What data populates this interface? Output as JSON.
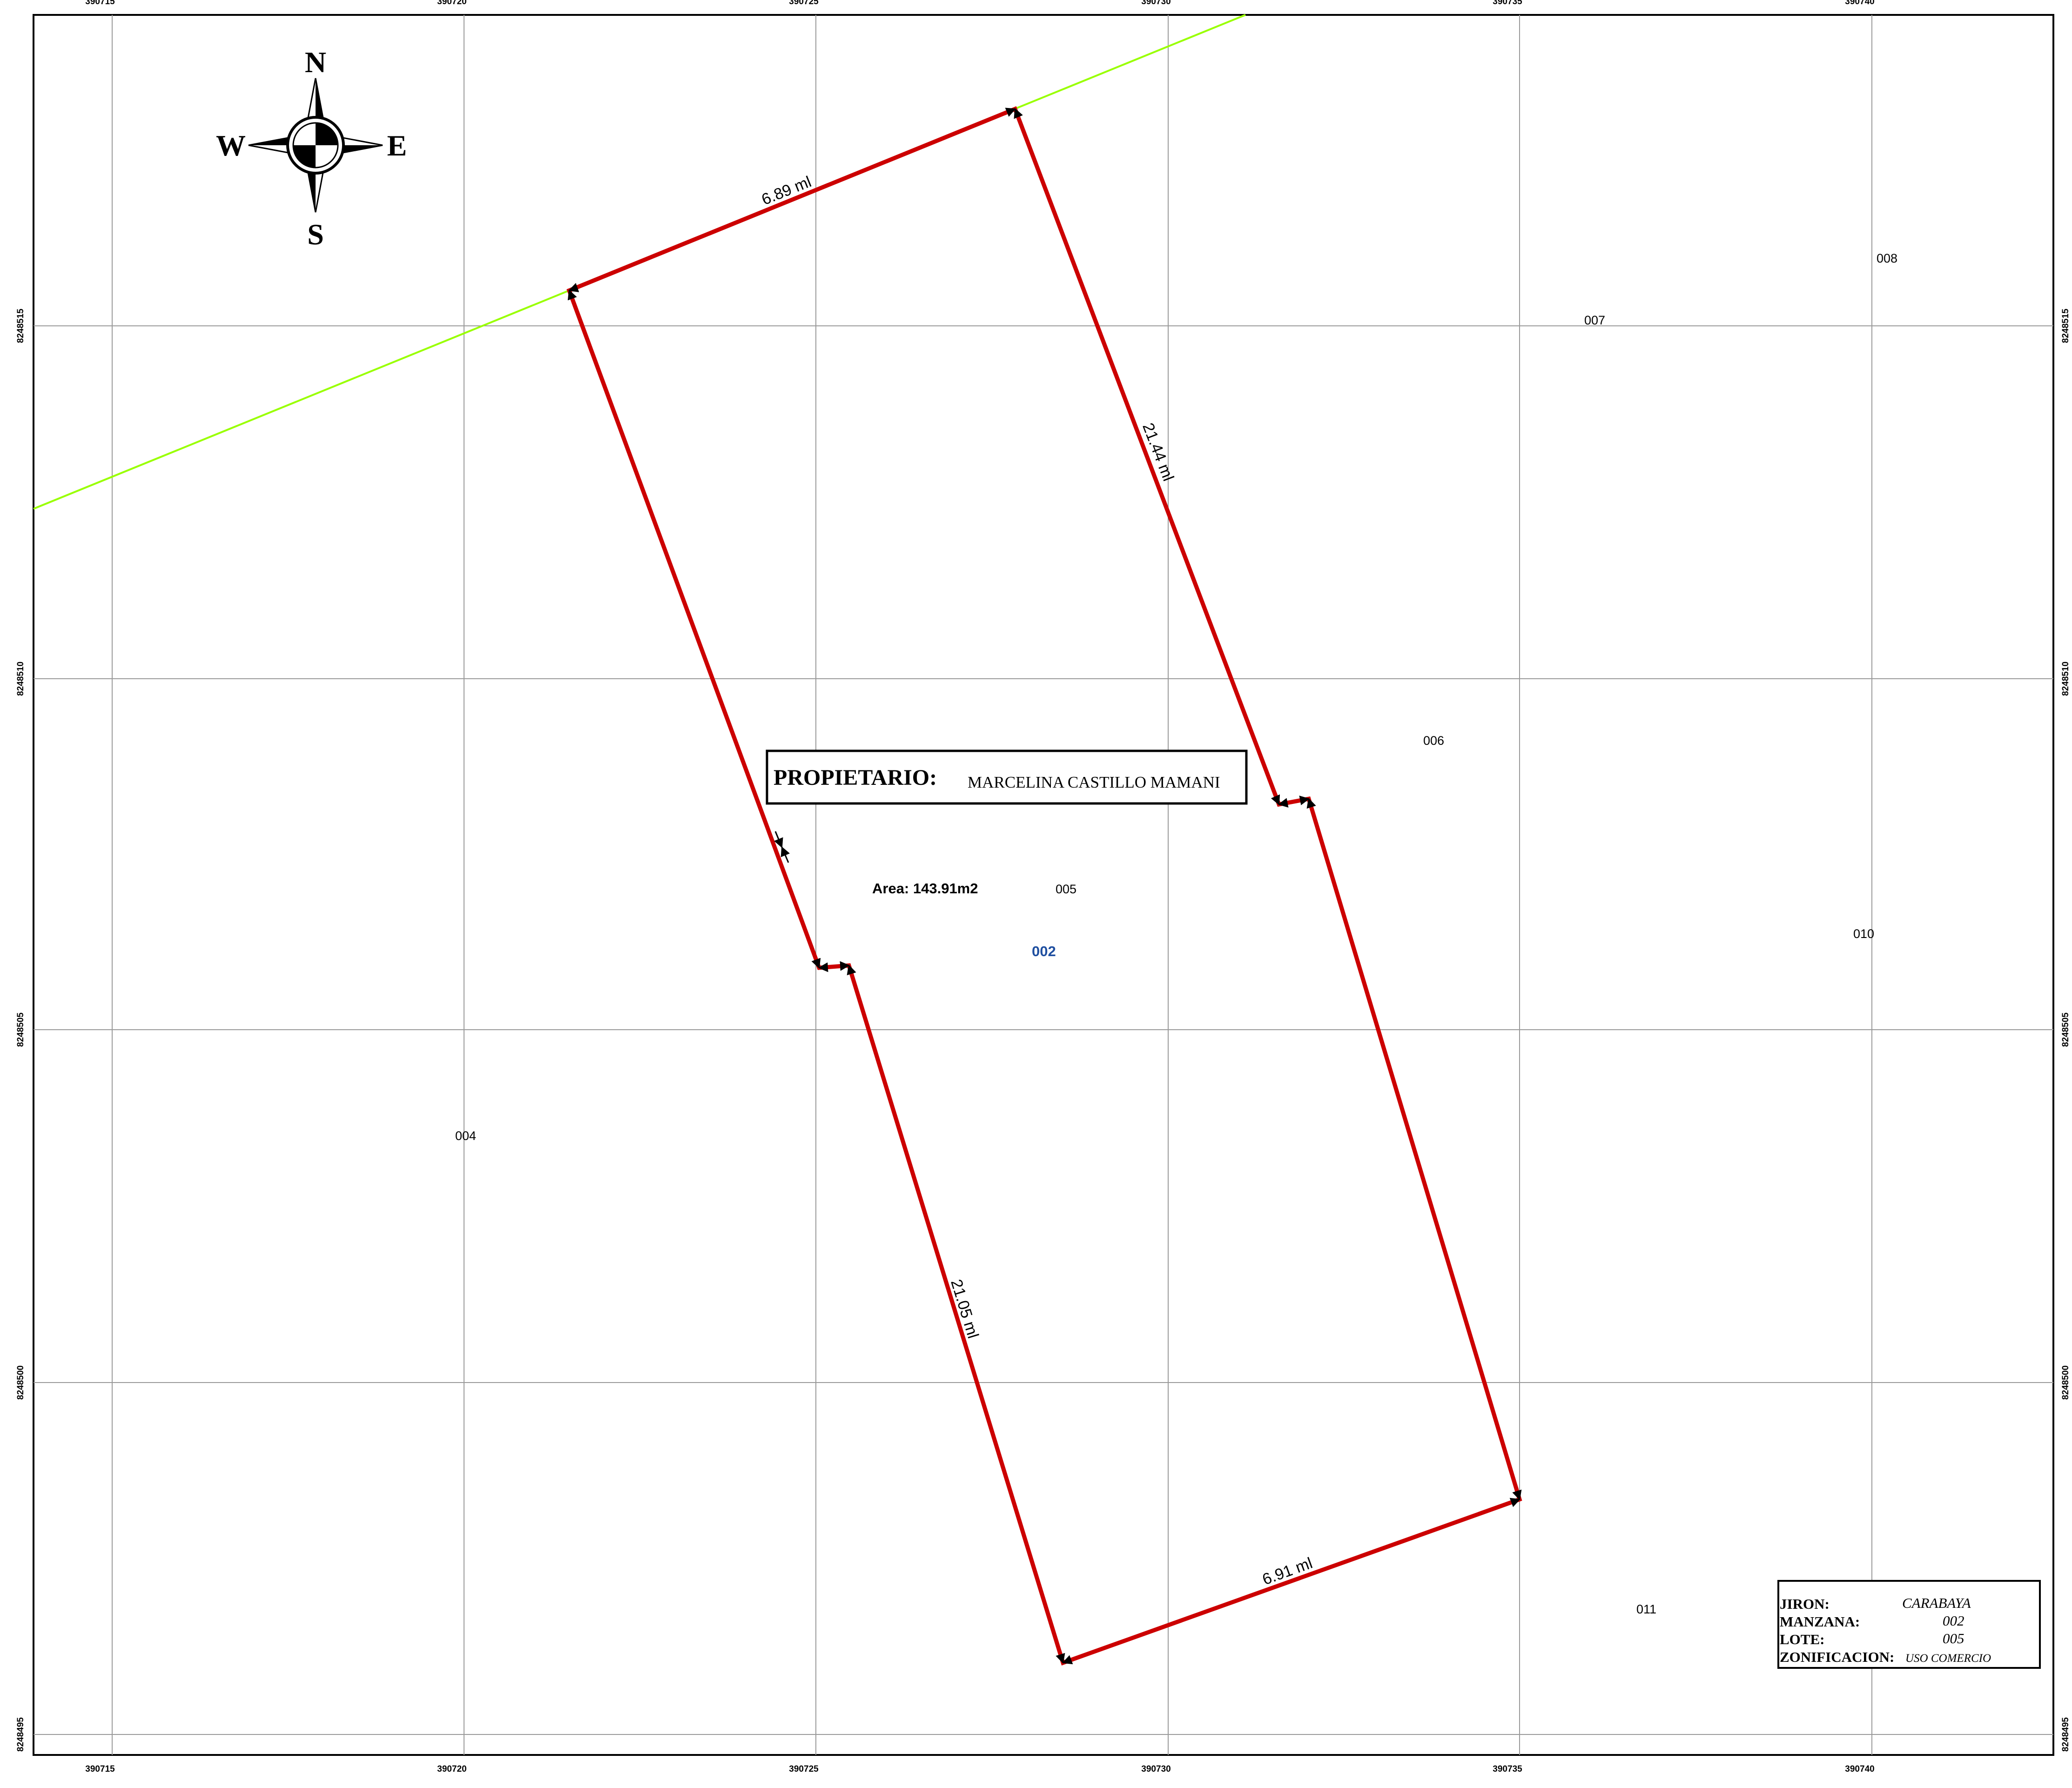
{
  "map": {
    "x_ticks": [
      "390715",
      "390720",
      "390725",
      "390730",
      "390735",
      "390740"
    ],
    "y_ticks": [
      "8248515",
      "8248510",
      "8248505",
      "8248500",
      "8248495"
    ],
    "compass": {
      "n": "N",
      "s": "S",
      "e": "E",
      "w": "W"
    },
    "lots": {
      "lot_004": "004",
      "lot_005": "005",
      "lot_006": "006",
      "lot_007": "007",
      "lot_008": "008",
      "lot_010": "010",
      "lot_011": "011",
      "block_002": "002"
    },
    "dimensions": {
      "north_side": "6.89 ml",
      "east_side": "21.44 ml",
      "west_side": "21.05 ml",
      "south_side": "6.91 ml"
    },
    "area": "Area: 143.91m2",
    "owner": {
      "label": "PROPIETARIO:",
      "name": "MARCELINA CASTILLO MAMANI"
    },
    "legend": {
      "jiron_label": "JIRON:",
      "jiron_value": "CARABAYA",
      "manzana_label": "MANZANA:",
      "manzana_value": "002",
      "lote_label": "LOTE:",
      "lote_value": "005",
      "zonificacion_label": "ZONIFICACION:",
      "zonificacion_value": "USO COMERCIO"
    },
    "colors": {
      "parcel_outline": "#cc0000",
      "street_line": "#99ff00",
      "grid": "#9a9a9a",
      "block_label": "#1f4fa0"
    }
  }
}
